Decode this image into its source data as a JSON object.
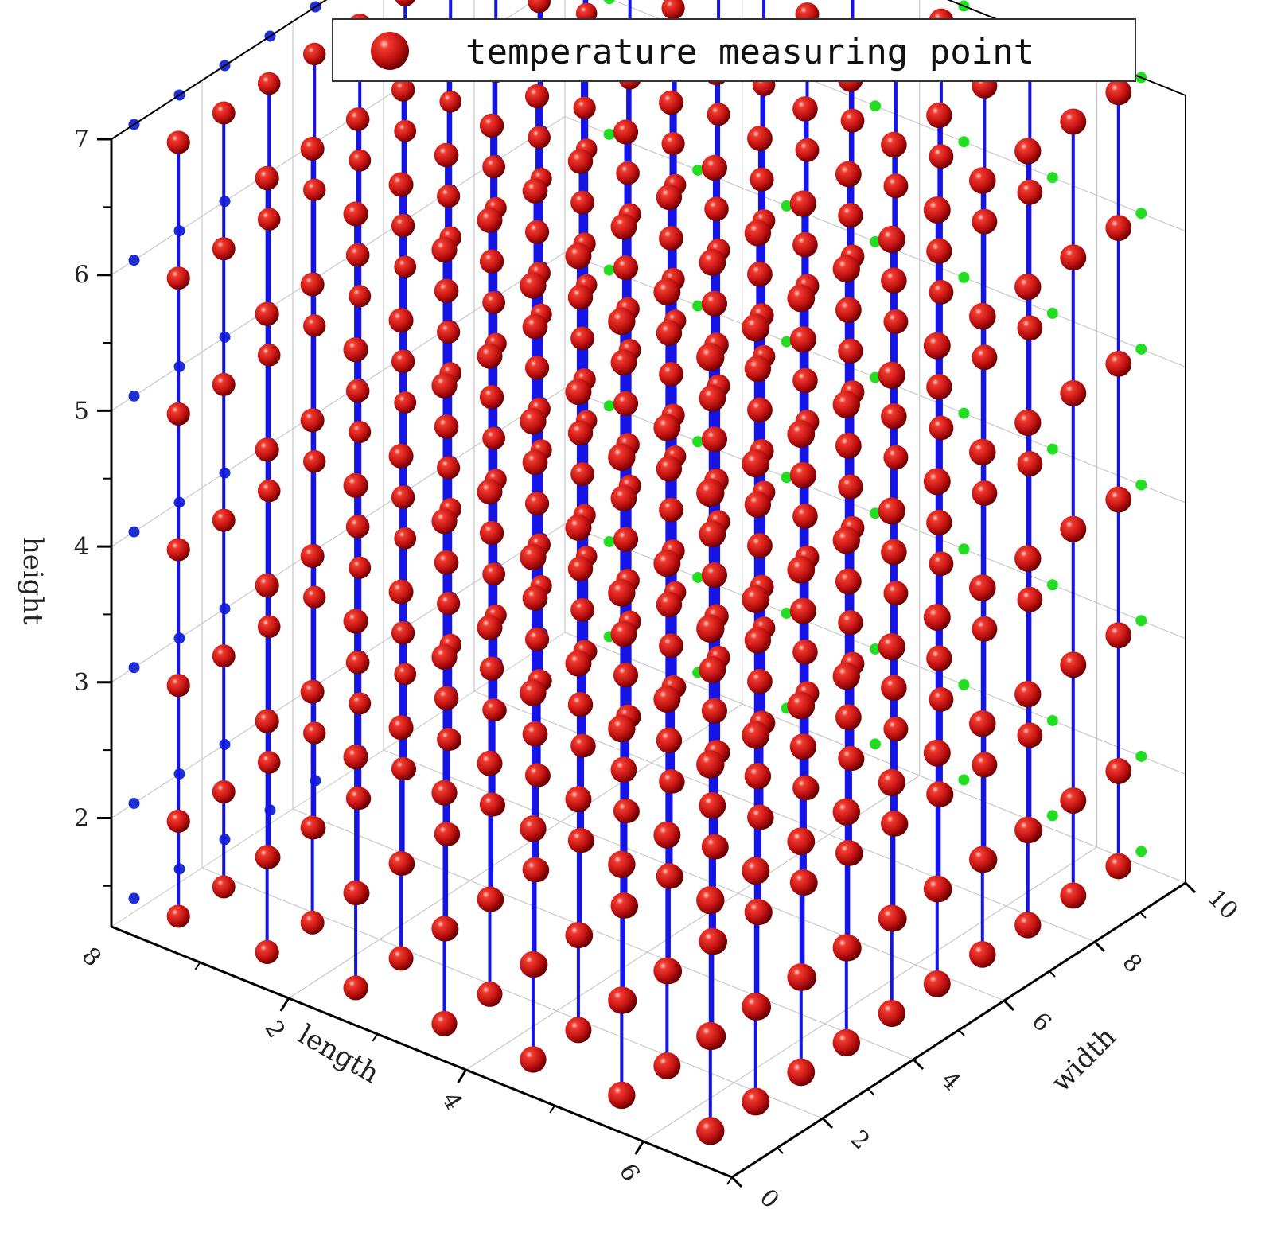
{
  "chart_data": {
    "type": "scatter3d",
    "title": "",
    "legend": {
      "placement": "top-center",
      "entries": [
        {
          "label": "temperature measuring point",
          "marker": "red-sphere"
        }
      ]
    },
    "axes": {
      "x": {
        "label": "length",
        "range": [
          0,
          7
        ],
        "ticks": [
          "2",
          "4",
          "6"
        ]
      },
      "y": {
        "label": "width",
        "range": [
          0,
          10
        ],
        "ticks": [
          "0",
          "2",
          "4",
          "6",
          "8",
          "10"
        ]
      },
      "z": {
        "label": "height",
        "range": [
          1.2,
          7
        ],
        "ticks": [
          "2",
          "3",
          "4",
          "5",
          "6",
          "7"
        ]
      }
    },
    "grid": true,
    "projections": {
      "length-height-wall": "blue dots",
      "width-height-wall": "green dots"
    },
    "points": {
      "description": "regular grid of measuring points",
      "length_values": [
        0.5,
        1.5,
        2.5,
        3.5,
        4.5,
        5.5,
        6.5
      ],
      "width_values": [
        0.5,
        1.5,
        2.5,
        3.5,
        4.5,
        5.5,
        6.5,
        7.5,
        8.5,
        9.5
      ],
      "height_values": [
        1.3,
        2.0,
        3.0,
        4.0,
        5.0,
        6.0,
        7.0
      ]
    },
    "colors": {
      "point": "#d9141a",
      "stem": "#1414e6",
      "wall-projection-length": "#1f2fd6",
      "wall-projection-width": "#22dd22",
      "grid": "#c8c8c8",
      "axis": "#000000"
    }
  },
  "axis-corner-label": "8"
}
